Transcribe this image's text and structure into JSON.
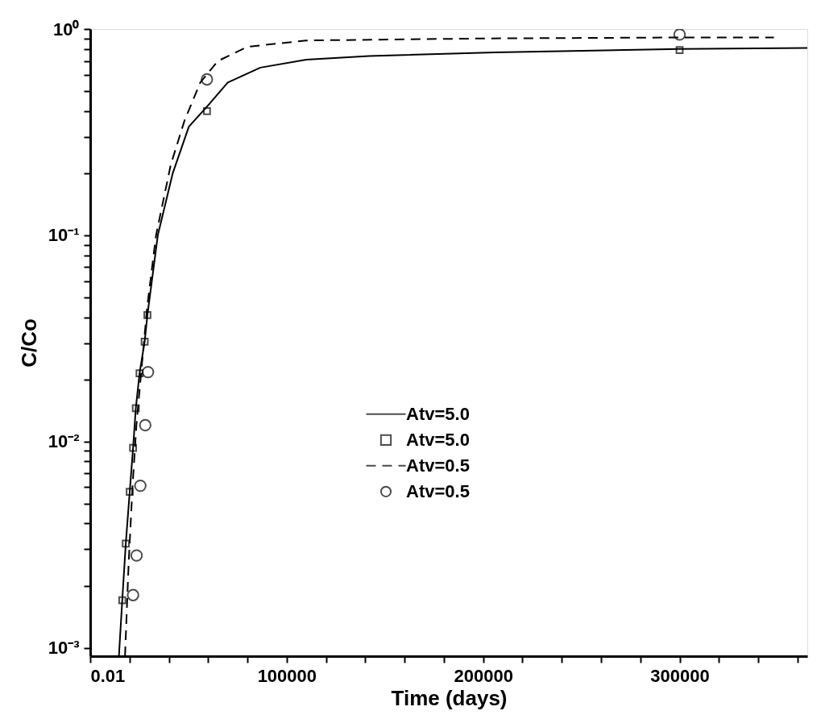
{
  "chart_data": {
    "type": "line",
    "xlabel": "Time (days)",
    "ylabel": "C/Co",
    "log": "y",
    "grid": false,
    "legend": "bottom right",
    "xlim": [
      0.01,
      365000
    ],
    "ylim": [
      0.00091,
      1
    ],
    "xticks": [
      0.01,
      {
        "value": 20000,
        "label": null
      },
      {
        "value": 40000,
        "label": null
      },
      {
        "value": 60000,
        "label": null
      },
      {
        "value": 80000,
        "label": null
      },
      100000,
      {
        "value": 120000,
        "label": null
      },
      {
        "value": 140000,
        "label": null
      },
      {
        "value": 160000,
        "label": null
      },
      {
        "value": 180000,
        "label": null
      },
      200000,
      {
        "value": 220000,
        "label": null
      },
      {
        "value": 240000,
        "label": null
      },
      {
        "value": 260000,
        "label": null
      },
      {
        "value": 280000,
        "label": null
      },
      300000,
      {
        "value": 320000,
        "label": null
      },
      {
        "value": 340000,
        "label": null
      },
      {
        "value": 360000,
        "label": null
      }
    ],
    "yticks": [
      {
        "value": 0.001,
        "label": "10⁻³"
      },
      {
        "value": 0.002,
        "label": null
      },
      {
        "value": 0.003,
        "label": null
      },
      {
        "value": 0.004,
        "label": null
      },
      {
        "value": 0.005,
        "label": null
      },
      {
        "value": 0.006,
        "label": null
      },
      {
        "value": 0.007,
        "label": null
      },
      {
        "value": 0.008,
        "label": null
      },
      {
        "value": 0.009,
        "label": null
      },
      {
        "value": 0.01,
        "label": "10⁻²"
      },
      {
        "value": 0.02,
        "label": null
      },
      {
        "value": 0.03,
        "label": null
      },
      {
        "value": 0.04,
        "label": null
      },
      {
        "value": 0.05,
        "label": null
      },
      {
        "value": 0.06,
        "label": null
      },
      {
        "value": 0.07,
        "label": null
      },
      {
        "value": 0.08,
        "label": null
      },
      {
        "value": 0.09,
        "label": null
      },
      {
        "value": 0.1,
        "label": "10⁻¹"
      },
      {
        "value": 0.2,
        "label": null
      },
      {
        "value": 0.3,
        "label": null
      },
      {
        "value": 0.4,
        "label": null
      },
      {
        "value": 0.5,
        "label": null
      },
      {
        "value": 0.6,
        "label": null
      },
      {
        "value": 0.7,
        "label": null
      },
      {
        "value": 0.8,
        "label": null
      },
      {
        "value": 0.9,
        "label": null
      },
      {
        "value": 1,
        "label": "10⁰"
      }
    ],
    "series": [
      {
        "name": "Atv=5.0",
        "type": "line",
        "color": "#000000",
        "line_style": "solid",
        "marker": "none",
        "x": [
          14600,
          16300,
          18100,
          20100,
          21800,
          23200,
          25100,
          27700,
          29100,
          34400,
          42000,
          50200,
          59400,
          70000,
          86600,
          110000,
          142000,
          206000,
          300000,
          365000
        ],
        "values": [
          0.00091,
          0.0017,
          0.0032,
          0.0057,
          0.0093,
          0.0145,
          0.0214,
          0.0305,
          0.041,
          0.1,
          0.2,
          0.336,
          0.42,
          0.55,
          0.65,
          0.71,
          0.74,
          0.77,
          0.8,
          0.81
        ]
      },
      {
        "name": "Atv=5.0",
        "type": "scatter",
        "color": "#000000",
        "marker": "square",
        "x": [
          16300,
          18100,
          20100,
          21800,
          23200,
          25100,
          27700,
          29100,
          59400,
          300000
        ],
        "values": [
          0.0017,
          0.0032,
          0.0057,
          0.0093,
          0.0145,
          0.0214,
          0.0305,
          0.041,
          0.4,
          0.79
        ]
      },
      {
        "name": "Atv=0.5",
        "type": "line",
        "color": "#000000",
        "line_style": "dashed",
        "marker": "none",
        "x": [
          17700,
          19500,
          21500,
          23500,
          26000,
          29000,
          33500,
          41000,
          48000,
          56000,
          65000,
          80000,
          110000,
          200000,
          300000,
          348000
        ],
        "values": [
          0.00091,
          0.0025,
          0.006,
          0.012,
          0.022,
          0.045,
          0.1,
          0.22,
          0.36,
          0.55,
          0.7,
          0.82,
          0.88,
          0.9,
          0.91,
          0.91
        ]
      },
      {
        "name": "Atv=0.5",
        "type": "scatter",
        "color": "#000000",
        "marker": "circle",
        "x": [
          21800,
          23600,
          25500,
          28000,
          29400,
          59400,
          300000
        ],
        "values": [
          0.0018,
          0.0028,
          0.0061,
          0.012,
          0.0217,
          0.57,
          0.94
        ]
      }
    ]
  }
}
